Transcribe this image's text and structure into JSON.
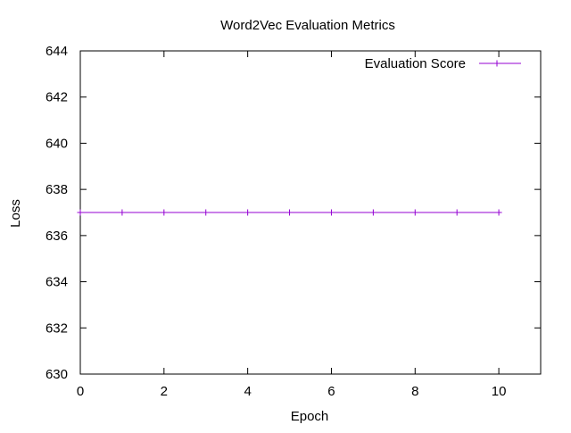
{
  "chart_data": {
    "type": "line",
    "title": "Word2Vec Evaluation Metrics",
    "xlabel": "Epoch",
    "ylabel": "Loss",
    "xlim": [
      0,
      11
    ],
    "ylim": [
      630,
      644
    ],
    "xticks": [
      0,
      2,
      4,
      6,
      8,
      10
    ],
    "yticks": [
      630,
      632,
      634,
      636,
      638,
      640,
      642,
      644
    ],
    "grid": false,
    "legend": "top-right",
    "series": [
      {
        "name": "Evaluation Score",
        "color": "#9400D3",
        "marker": "plus",
        "x": [
          0,
          1,
          2,
          3,
          4,
          5,
          6,
          7,
          8,
          9,
          10
        ],
        "y": [
          637,
          637,
          637,
          637,
          637,
          637,
          637,
          637,
          637,
          637,
          637
        ]
      }
    ]
  }
}
